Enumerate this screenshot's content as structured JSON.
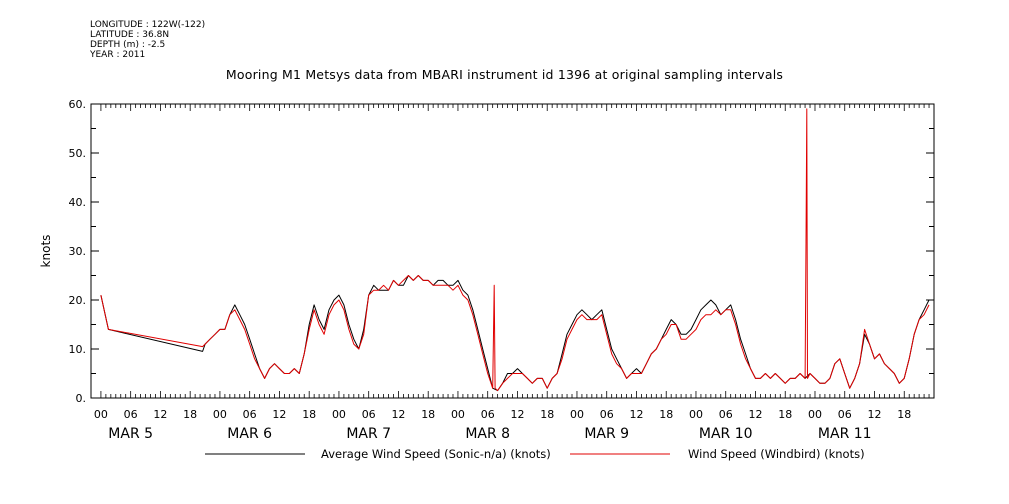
{
  "meta": {
    "longitude": "LONGITUDE : 122W(-122)",
    "latitude": "LATITUDE : 36.8N",
    "depth": "DEPTH (m) : -2.5",
    "year": "YEAR : 2011"
  },
  "chart_data": {
    "type": "line",
    "title": "Mooring M1 Metsys data from MBARI instrument id 1396 at original sampling intervals",
    "ylabel": "knots",
    "xlabel": "",
    "ylim": [
      0,
      60
    ],
    "y_ticks": [
      "0.",
      "10.",
      "20.",
      "30.",
      "40.",
      "50.",
      "60."
    ],
    "x_unit": "hours since MAR 5 00",
    "xlim": [
      -2,
      168
    ],
    "hour_ticks": [
      "00",
      "06",
      "12",
      "18",
      "00",
      "06",
      "12",
      "18",
      "00",
      "06",
      "12",
      "18",
      "00",
      "06",
      "12",
      "18",
      "00",
      "06",
      "12",
      "18",
      "00",
      "06",
      "12",
      "18",
      "00",
      "06",
      "12",
      "18"
    ],
    "day_labels": [
      "MAR  5",
      "MAR  6",
      "MAR  7",
      "MAR  8",
      "MAR  9",
      "MAR 10",
      "MAR 11"
    ],
    "grid": false,
    "legend_position": "bottom",
    "series": [
      {
        "name": "Average Wind Speed (Sonic-n/a) (knots)",
        "color": "#000000",
        "points": [
          [
            0,
            21
          ],
          [
            1.5,
            14
          ],
          [
            20.5,
            9.5
          ],
          [
            21,
            11
          ],
          [
            22,
            12
          ],
          [
            23,
            13
          ],
          [
            24,
            14
          ],
          [
            25,
            14
          ],
          [
            26,
            17
          ],
          [
            27,
            19
          ],
          [
            28,
            17
          ],
          [
            29,
            15
          ],
          [
            30,
            12
          ],
          [
            31,
            9
          ],
          [
            32,
            6
          ],
          [
            33,
            4
          ],
          [
            34,
            6
          ],
          [
            35,
            7
          ],
          [
            36,
            6
          ],
          [
            37,
            5
          ],
          [
            38,
            5
          ],
          [
            39,
            6
          ],
          [
            40,
            5
          ],
          [
            41,
            9
          ],
          [
            42,
            15
          ],
          [
            43,
            19
          ],
          [
            44,
            16
          ],
          [
            45,
            14
          ],
          [
            46,
            18
          ],
          [
            47,
            20
          ],
          [
            48,
            21
          ],
          [
            49,
            19
          ],
          [
            50,
            15
          ],
          [
            51,
            12
          ],
          [
            52,
            10
          ],
          [
            53,
            14
          ],
          [
            54,
            21
          ],
          [
            55,
            23
          ],
          [
            56,
            22
          ],
          [
            57,
            22
          ],
          [
            58,
            22
          ],
          [
            59,
            24
          ],
          [
            60,
            23
          ],
          [
            61,
            23
          ],
          [
            62,
            25
          ],
          [
            63,
            24
          ],
          [
            64,
            25
          ],
          [
            65,
            24
          ],
          [
            66,
            24
          ],
          [
            67,
            23
          ],
          [
            68,
            24
          ],
          [
            69,
            24
          ],
          [
            70,
            23
          ],
          [
            71,
            23
          ],
          [
            72,
            24
          ],
          [
            73,
            22
          ],
          [
            74,
            21
          ],
          [
            75,
            18
          ],
          [
            76,
            14
          ],
          [
            77,
            10
          ],
          [
            78,
            6
          ],
          [
            79,
            2
          ],
          [
            80,
            1.5
          ],
          [
            81,
            3
          ],
          [
            82,
            5
          ],
          [
            83,
            5
          ],
          [
            84,
            6
          ],
          [
            85,
            5
          ],
          [
            86,
            4
          ],
          [
            87,
            3
          ],
          [
            88,
            4
          ],
          [
            89,
            4
          ],
          [
            90,
            2
          ],
          [
            91,
            4
          ],
          [
            92,
            5
          ],
          [
            93,
            9
          ],
          [
            94,
            13
          ],
          [
            95,
            15
          ],
          [
            96,
            17
          ],
          [
            97,
            18
          ],
          [
            98,
            17
          ],
          [
            99,
            16
          ],
          [
            100,
            17
          ],
          [
            101,
            18
          ],
          [
            102,
            14
          ],
          [
            103,
            10
          ],
          [
            104,
            8
          ],
          [
            105,
            6
          ],
          [
            106,
            4
          ],
          [
            107,
            5
          ],
          [
            108,
            6
          ],
          [
            109,
            5
          ],
          [
            110,
            7
          ],
          [
            111,
            9
          ],
          [
            112,
            10
          ],
          [
            113,
            12
          ],
          [
            114,
            14
          ],
          [
            115,
            16
          ],
          [
            116,
            15
          ],
          [
            117,
            13
          ],
          [
            118,
            13
          ],
          [
            119,
            14
          ],
          [
            120,
            16
          ],
          [
            121,
            18
          ],
          [
            122,
            19
          ],
          [
            123,
            20
          ],
          [
            124,
            19
          ],
          [
            125,
            17
          ],
          [
            126,
            18
          ],
          [
            127,
            19
          ],
          [
            128,
            16
          ],
          [
            129,
            12
          ],
          [
            130,
            9
          ],
          [
            131,
            6
          ],
          [
            132,
            4
          ],
          [
            133,
            4
          ],
          [
            134,
            5
          ],
          [
            135,
            4
          ],
          [
            136,
            5
          ],
          [
            137,
            4
          ],
          [
            138,
            3
          ],
          [
            139,
            4
          ],
          [
            140,
            4
          ],
          [
            141,
            5
          ],
          [
            142,
            4
          ],
          [
            143,
            5
          ],
          [
            144,
            4
          ],
          [
            145,
            3
          ],
          [
            146,
            3
          ],
          [
            147,
            4
          ],
          [
            148,
            7
          ],
          [
            149,
            8
          ],
          [
            150,
            5
          ],
          [
            151,
            2
          ],
          [
            152,
            4
          ],
          [
            153,
            7
          ],
          [
            154,
            13
          ],
          [
            155,
            11
          ],
          [
            156,
            8
          ],
          [
            157,
            9
          ],
          [
            158,
            7
          ],
          [
            159,
            6
          ],
          [
            160,
            5
          ],
          [
            161,
            3
          ],
          [
            162,
            4
          ],
          [
            163,
            8
          ],
          [
            164,
            13
          ],
          [
            165,
            16
          ],
          [
            166,
            18
          ],
          [
            167,
            20
          ]
        ]
      },
      {
        "name": "Wind Speed (Windbird) (knots)",
        "color": "#e00000",
        "points": [
          [
            0,
            21
          ],
          [
            1.5,
            14
          ],
          [
            20.5,
            10.5
          ],
          [
            21,
            11
          ],
          [
            22,
            12
          ],
          [
            23,
            13
          ],
          [
            24,
            14
          ],
          [
            25,
            14
          ],
          [
            26,
            17
          ],
          [
            27,
            18
          ],
          [
            28,
            16
          ],
          [
            29,
            14
          ],
          [
            30,
            11
          ],
          [
            31,
            8
          ],
          [
            32,
            6
          ],
          [
            33,
            4
          ],
          [
            34,
            6
          ],
          [
            35,
            7
          ],
          [
            36,
            6
          ],
          [
            37,
            5
          ],
          [
            38,
            5
          ],
          [
            39,
            6
          ],
          [
            40,
            5
          ],
          [
            41,
            9
          ],
          [
            42,
            14
          ],
          [
            43,
            18
          ],
          [
            44,
            15
          ],
          [
            45,
            13
          ],
          [
            46,
            17
          ],
          [
            47,
            19
          ],
          [
            48,
            20
          ],
          [
            49,
            18
          ],
          [
            50,
            14
          ],
          [
            51,
            11
          ],
          [
            52,
            10
          ],
          [
            53,
            13
          ],
          [
            54,
            21
          ],
          [
            55,
            22
          ],
          [
            56,
            22
          ],
          [
            57,
            23
          ],
          [
            58,
            22
          ],
          [
            59,
            24
          ],
          [
            60,
            23
          ],
          [
            61,
            24
          ],
          [
            62,
            25
          ],
          [
            63,
            24
          ],
          [
            64,
            25
          ],
          [
            65,
            24
          ],
          [
            66,
            24
          ],
          [
            67,
            23
          ],
          [
            68,
            23
          ],
          [
            69,
            23
          ],
          [
            70,
            23
          ],
          [
            71,
            22
          ],
          [
            72,
            23
          ],
          [
            73,
            21
          ],
          [
            74,
            20
          ],
          [
            75,
            17
          ],
          [
            76,
            13
          ],
          [
            77,
            9
          ],
          [
            78,
            5
          ],
          [
            79,
            2
          ],
          [
            79.3,
            23
          ],
          [
            79.5,
            2
          ],
          [
            80,
            1.5
          ],
          [
            81,
            3
          ],
          [
            82,
            4
          ],
          [
            83,
            5
          ],
          [
            84,
            5
          ],
          [
            85,
            5
          ],
          [
            86,
            4
          ],
          [
            87,
            3
          ],
          [
            88,
            4
          ],
          [
            89,
            4
          ],
          [
            90,
            2
          ],
          [
            91,
            4
          ],
          [
            92,
            5
          ],
          [
            93,
            8
          ],
          [
            94,
            12
          ],
          [
            95,
            14
          ],
          [
            96,
            16
          ],
          [
            97,
            17
          ],
          [
            98,
            16
          ],
          [
            99,
            16
          ],
          [
            100,
            16
          ],
          [
            101,
            17
          ],
          [
            102,
            13
          ],
          [
            103,
            9
          ],
          [
            104,
            7
          ],
          [
            105,
            6
          ],
          [
            106,
            4
          ],
          [
            107,
            5
          ],
          [
            108,
            5
          ],
          [
            109,
            5
          ],
          [
            110,
            7
          ],
          [
            111,
            9
          ],
          [
            112,
            10
          ],
          [
            113,
            12
          ],
          [
            114,
            13
          ],
          [
            115,
            15
          ],
          [
            116,
            15
          ],
          [
            117,
            12
          ],
          [
            118,
            12
          ],
          [
            119,
            13
          ],
          [
            120,
            14
          ],
          [
            121,
            16
          ],
          [
            122,
            17
          ],
          [
            123,
            17
          ],
          [
            124,
            18
          ],
          [
            125,
            17
          ],
          [
            126,
            18
          ],
          [
            127,
            18
          ],
          [
            128,
            15
          ],
          [
            129,
            11
          ],
          [
            130,
            8
          ],
          [
            131,
            6
          ],
          [
            132,
            4
          ],
          [
            133,
            4
          ],
          [
            134,
            5
          ],
          [
            135,
            4
          ],
          [
            136,
            5
          ],
          [
            137,
            4
          ],
          [
            138,
            3
          ],
          [
            139,
            4
          ],
          [
            140,
            4
          ],
          [
            141,
            5
          ],
          [
            142,
            4
          ],
          [
            142.2,
            35
          ],
          [
            142.35,
            59
          ],
          [
            142.5,
            4
          ],
          [
            143,
            5
          ],
          [
            144,
            4
          ],
          [
            145,
            3
          ],
          [
            146,
            3
          ],
          [
            147,
            4
          ],
          [
            148,
            7
          ],
          [
            149,
            8
          ],
          [
            150,
            5
          ],
          [
            151,
            2
          ],
          [
            152,
            4
          ],
          [
            153,
            7
          ],
          [
            154,
            14
          ],
          [
            155,
            11
          ],
          [
            156,
            8
          ],
          [
            157,
            9
          ],
          [
            158,
            7
          ],
          [
            159,
            6
          ],
          [
            160,
            5
          ],
          [
            161,
            3
          ],
          [
            162,
            4
          ],
          [
            163,
            8
          ],
          [
            164,
            13
          ],
          [
            165,
            16
          ],
          [
            166,
            17
          ],
          [
            167,
            19
          ]
        ]
      }
    ]
  }
}
